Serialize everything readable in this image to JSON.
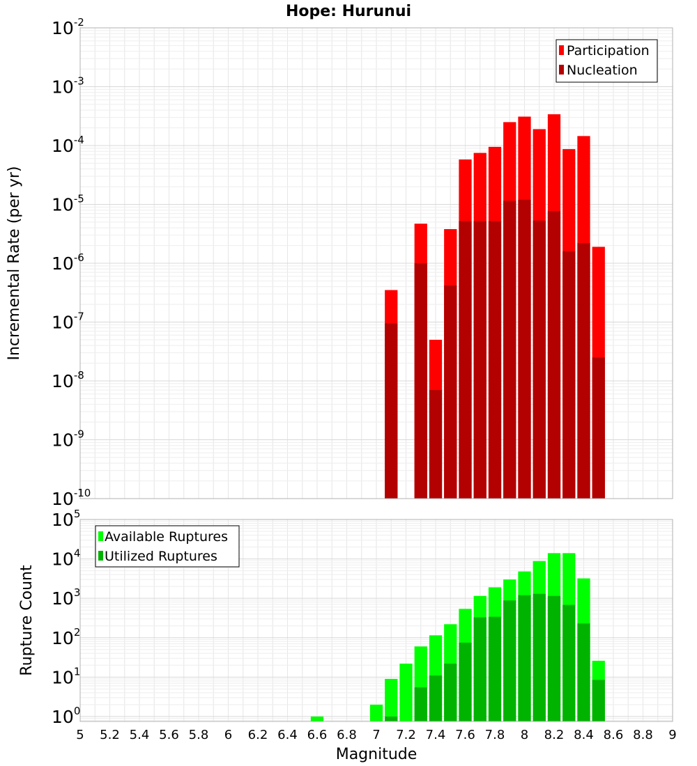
{
  "title": "Hope: Hurunui",
  "xlabel": "Magnitude",
  "x_ticks": [
    "5",
    "5.2",
    "5.4",
    "5.6",
    "5.8",
    "6",
    "6.2",
    "6.4",
    "6.6",
    "6.8",
    "7",
    "7.2",
    "7.4",
    "7.6",
    "7.8",
    "8",
    "8.2",
    "8.4",
    "8.6",
    "8.8",
    "9"
  ],
  "colors": {
    "participation": "#ff0000",
    "nucleation": "#b30000",
    "available": "#00ff00",
    "utilized": "#00b300",
    "grid": "#e6e6e6",
    "frame": "#b0b0b0"
  },
  "chart_data": [
    {
      "type": "bar",
      "panel": "rate",
      "title": "Hope: Hurunui",
      "ylabel": "Incremental Rate (per yr)",
      "xlabel": "",
      "xlim": [
        5,
        9
      ],
      "ylim": [
        1e-10,
        0.01
      ],
      "yscale": "log",
      "ytick_exponents": [
        "-10",
        "-9",
        "-8",
        "-7",
        "-6",
        "-5",
        "-4",
        "-3",
        "-2"
      ],
      "ytick_base": "10",
      "grid": true,
      "legend_position": "top-right",
      "bar_width": 0.1,
      "series": [
        {
          "name": "Participation",
          "color": "#ff0000",
          "x": [
            7.1,
            7.3,
            7.4,
            7.5,
            7.6,
            7.7,
            7.8,
            7.9,
            8.0,
            8.1,
            8.2,
            8.3,
            8.4,
            8.5
          ],
          "values": [
            3.5e-07,
            4.7e-06,
            5e-08,
            3.8e-06,
            5.8e-05,
            7.5e-05,
            9.5e-05,
            0.00025,
            0.00031,
            0.00019,
            0.00034,
            8.7e-05,
            0.000145,
            1.9e-06
          ]
        },
        {
          "name": "Nucleation",
          "color": "#b30000",
          "x": [
            7.1,
            7.3,
            7.4,
            7.5,
            7.6,
            7.7,
            7.8,
            7.9,
            8.0,
            8.1,
            8.2,
            8.3,
            8.4,
            8.5
          ],
          "values": [
            9.5e-08,
            1e-06,
            7e-09,
            4.2e-07,
            5.2e-06,
            5.2e-06,
            5.2e-06,
            1.15e-05,
            1.2e-05,
            5.3e-06,
            7.7e-06,
            1.6e-06,
            2.2e-06,
            2.5e-08
          ]
        }
      ]
    },
    {
      "type": "bar",
      "panel": "count",
      "ylabel": "Rupture Count",
      "xlabel": "Magnitude",
      "xlim": [
        5,
        9
      ],
      "ylim": [
        0.75,
        100000.0
      ],
      "yscale": "log",
      "ytick_exponents": [
        "0",
        "1",
        "2",
        "3",
        "4",
        "5"
      ],
      "ytick_base": "10",
      "grid": true,
      "legend_position": "top-left",
      "bar_width": 0.1,
      "series": [
        {
          "name": "Available Ruptures",
          "color": "#00ff00",
          "x": [
            6.6,
            7.0,
            7.1,
            7.2,
            7.3,
            7.4,
            7.5,
            7.6,
            7.7,
            7.8,
            7.9,
            8.0,
            8.1,
            8.2,
            8.3,
            8.4,
            8.5
          ],
          "values": [
            1,
            2,
            9,
            22,
            60,
            115,
            220,
            540,
            1150,
            1900,
            3000,
            4800,
            8800,
            14000,
            14000,
            3200,
            26
          ]
        },
        {
          "name": "Utilized Ruptures",
          "color": "#00b300",
          "x": [
            7.1,
            7.3,
            7.4,
            7.5,
            7.6,
            7.7,
            7.8,
            7.9,
            8.0,
            8.1,
            8.2,
            8.3,
            8.4,
            8.5
          ],
          "values": [
            1,
            5.5,
            11,
            22,
            75,
            330,
            340,
            880,
            1200,
            1300,
            1150,
            680,
            230,
            8.5
          ]
        }
      ]
    }
  ]
}
